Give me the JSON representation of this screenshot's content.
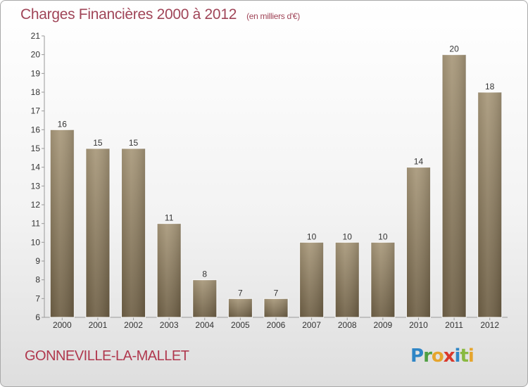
{
  "chart_data": {
    "type": "bar",
    "title": "Charges Financières 2000 à 2012",
    "subtitle": "(en milliers d'€)",
    "categories": [
      "2000",
      "2001",
      "2002",
      "2003",
      "2004",
      "2005",
      "2006",
      "2007",
      "2008",
      "2009",
      "2010",
      "2011",
      "2012"
    ],
    "values": [
      16,
      15,
      15,
      11,
      8,
      7,
      7,
      10,
      10,
      10,
      14,
      20,
      18
    ],
    "ylim": [
      6,
      21
    ],
    "yticks": [
      6,
      7,
      8,
      9,
      10,
      11,
      12,
      13,
      14,
      15,
      16,
      17,
      18,
      19,
      20,
      21
    ],
    "grid": false,
    "bar_color": "#8a7a5c"
  },
  "commune": "GONNEVILLE-LA-MALLET",
  "logo": {
    "p": "P",
    "r": "r",
    "o": "o",
    "x": "x",
    "i1": "i",
    "t": "t",
    "i2": "i"
  }
}
